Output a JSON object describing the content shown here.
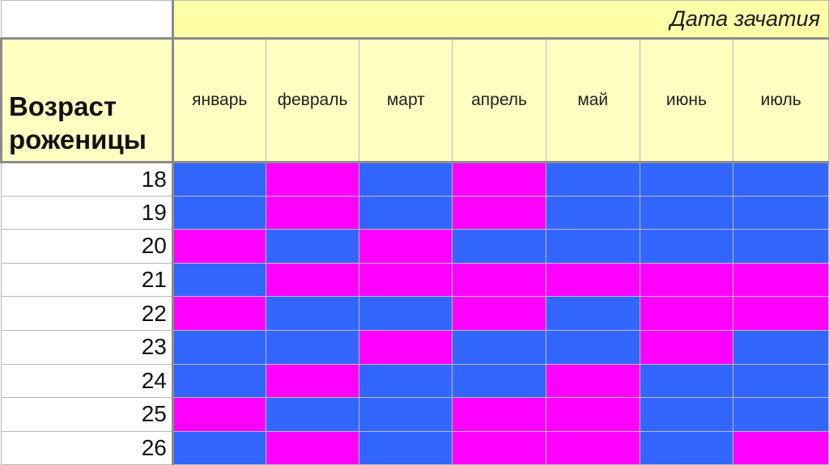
{
  "header": {
    "title": "Дата зачатия",
    "age_label": "Возраст роженицы"
  },
  "months": [
    "январь",
    "февраль",
    "март",
    "апрель",
    "май",
    "июнь",
    "июль"
  ],
  "colors": {
    "blue": "#3366ff",
    "pink": "#ff00ff",
    "header_yellow": "#ffffc2"
  },
  "rows": [
    {
      "age": "18",
      "cells": [
        "blue",
        "pink",
        "blue",
        "pink",
        "blue",
        "blue",
        "blue"
      ]
    },
    {
      "age": "19",
      "cells": [
        "blue",
        "pink",
        "blue",
        "pink",
        "blue",
        "blue",
        "blue"
      ]
    },
    {
      "age": "20",
      "cells": [
        "pink",
        "blue",
        "pink",
        "blue",
        "blue",
        "blue",
        "blue"
      ]
    },
    {
      "age": "21",
      "cells": [
        "blue",
        "pink",
        "pink",
        "pink",
        "pink",
        "pink",
        "pink"
      ]
    },
    {
      "age": "22",
      "cells": [
        "pink",
        "blue",
        "blue",
        "pink",
        "blue",
        "pink",
        "pink"
      ]
    },
    {
      "age": "23",
      "cells": [
        "blue",
        "blue",
        "pink",
        "blue",
        "blue",
        "pink",
        "blue"
      ]
    },
    {
      "age": "24",
      "cells": [
        "blue",
        "pink",
        "blue",
        "blue",
        "pink",
        "blue",
        "blue"
      ]
    },
    {
      "age": "25",
      "cells": [
        "pink",
        "blue",
        "blue",
        "pink",
        "pink",
        "blue",
        "blue"
      ]
    },
    {
      "age": "26",
      "cells": [
        "blue",
        "pink",
        "blue",
        "pink",
        "pink",
        "blue",
        "pink"
      ]
    }
  ]
}
